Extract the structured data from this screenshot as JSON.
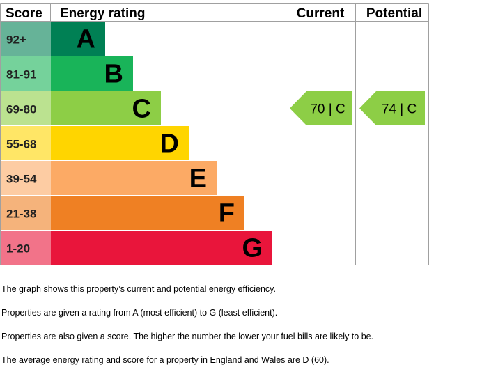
{
  "chart_data": {
    "type": "table",
    "headers": {
      "score": "Score",
      "rating": "Energy rating",
      "current": "Current",
      "potential": "Potential"
    },
    "bands": [
      {
        "letter": "A",
        "range": "92+",
        "color": "#008054",
        "score_color": "#66b398"
      },
      {
        "letter": "B",
        "range": "81-91",
        "color": "#19b459",
        "score_color": "#75d29b"
      },
      {
        "letter": "C",
        "range": "69-80",
        "color": "#8dce46",
        "score_color": "#bbe290"
      },
      {
        "letter": "D",
        "range": "55-68",
        "color": "#ffd500",
        "score_color": "#ffe666"
      },
      {
        "letter": "E",
        "range": "39-54",
        "color": "#fcaa65",
        "score_color": "#fdcca3"
      },
      {
        "letter": "F",
        "range": "21-38",
        "color": "#ef8023",
        "score_color": "#f5b37b"
      },
      {
        "letter": "G",
        "range": "1-20",
        "color": "#e9153b",
        "score_color": "#f27389"
      }
    ],
    "current": {
      "score": 70,
      "band": "C",
      "label": "70 | C"
    },
    "potential": {
      "score": 74,
      "band": "C",
      "label": "74 | C"
    }
  },
  "notes": [
    "The graph shows this property’s current and potential energy efficiency.",
    "Properties are given a rating from A (most efficient) to G (least efficient).",
    "Properties are also given a score. The higher the number the lower your fuel bills are likely to be.",
    "The average energy rating and score for a property in England and Wales are D (60)."
  ]
}
